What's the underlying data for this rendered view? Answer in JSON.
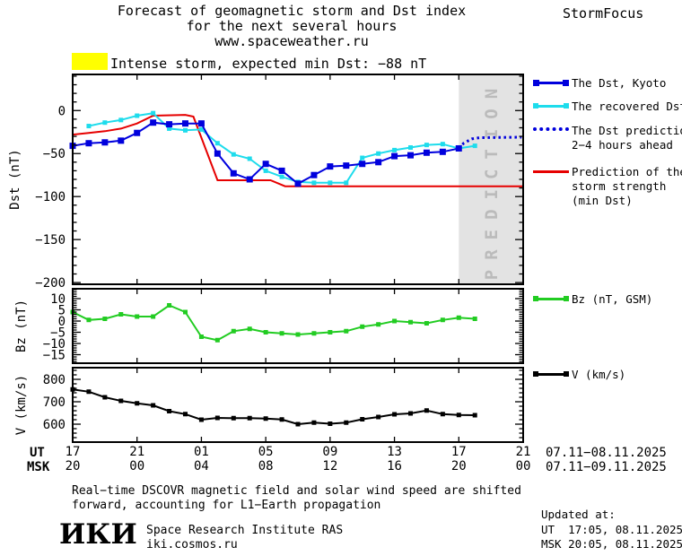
{
  "header": {
    "title_line1": "Forecast of geomagnetic storm and Dst index",
    "title_line2": "for the next several hours",
    "title_line3": "www.spaceweather.ru",
    "brand": "StormFocus"
  },
  "alert": {
    "text": "Intense storm, expected min Dst: −88 nT",
    "swatch_color": "#ffff00"
  },
  "prediction_band": {
    "label": "PREDICTION",
    "start_hour": 24,
    "fill": "#e3e3e3",
    "text_color": "#bbbbbb"
  },
  "legend": {
    "dst": "The Dst, Kyoto",
    "recovered": "The recovered Dst",
    "prediction_line1": "The Dst prediction",
    "prediction_line2": "2−4 hours ahead",
    "strength_line1": "Prediction of the",
    "strength_line2": "storm strength",
    "strength_line3": "(min Dst)",
    "bz": "Bz (nT, GSM)",
    "v": "V (km/s)"
  },
  "xaxis": {
    "ut_label": "UT",
    "msk_label": "MSK",
    "tick_hours": [
      0,
      4,
      8,
      12,
      16,
      20,
      24,
      28
    ],
    "ut_ticks": [
      "17",
      "21",
      "01",
      "05",
      "09",
      "13",
      "17",
      "21"
    ],
    "msk_ticks": [
      "20",
      "00",
      "04",
      "08",
      "12",
      "16",
      "20",
      "00"
    ],
    "ut_range": "07.11−08.11.2025",
    "msk_range": "07.11−09.11.2025"
  },
  "footer": {
    "note_line1": "Real−time DSCOVR magnetic field and solar wind speed are shifted",
    "note_line2": "forward, accounting for L1−Earth propagation",
    "logo": "ИКИ",
    "org_line1": "Space Research Institute RAS",
    "org_line2": "iki.cosmos.ru",
    "updated_label": "Updated at:",
    "updated_ut": "UT  17:05, 08.11.2025",
    "updated_msk": "MSK 20:05, 08.11.2025"
  },
  "chart_data": [
    {
      "type": "line",
      "panel": "dst",
      "ylabel": "Dst (nT)",
      "ylim": [
        -202,
        42
      ],
      "yticks": [
        0,
        -50,
        -100,
        -150,
        -200
      ],
      "ytick_labels": [
        "0",
        "−50",
        "−100",
        "−150",
        "−200"
      ],
      "yminor_step": 10,
      "xlim": [
        0,
        28
      ],
      "x_unit": "hours since 17:00 UT 07.11.2025",
      "series": [
        {
          "key": "storm_strength",
          "name": "Prediction of the storm strength (min Dst)",
          "color": "#e60000",
          "line_width": 2,
          "x": [
            0,
            1,
            2,
            3,
            4,
            5,
            7,
            7.5,
            9,
            12.3,
            13.2,
            28
          ],
          "values": [
            -28,
            -26,
            -24,
            -21,
            -15,
            -6,
            -5,
            -7,
            -81,
            -81,
            -88,
            -88
          ]
        },
        {
          "key": "recovered_dst",
          "name": "The recovered Dst",
          "color": "#1edcec",
          "line_width": 2,
          "marker": "square",
          "marker_size": 5,
          "x": [
            1,
            2,
            3,
            4,
            5,
            6,
            7,
            8,
            9,
            10,
            11,
            12,
            13,
            14,
            15,
            16,
            17,
            18,
            19,
            20,
            21,
            22,
            23,
            24,
            25
          ],
          "values": [
            -18,
            -14,
            -11,
            -6,
            -3,
            -21,
            -23,
            -22,
            -38,
            -51,
            -56,
            -70,
            -77,
            -83,
            -84,
            -84,
            -84,
            -55,
            -50,
            -46,
            -43,
            -40,
            -39,
            -44,
            -41
          ]
        },
        {
          "key": "dst_kyoto",
          "name": "The Dst, Kyoto",
          "color": "#0000dd",
          "line_width": 2,
          "marker": "square",
          "marker_size": 7,
          "x": [
            0,
            1,
            2,
            3,
            4,
            5,
            6,
            7,
            8,
            9,
            10,
            11,
            12,
            13,
            14,
            15,
            16,
            17,
            18,
            19,
            20,
            21,
            22,
            23,
            24
          ],
          "values": [
            -41,
            -38,
            -37,
            -35,
            -26,
            -14,
            -16,
            -15,
            -15,
            -50,
            -73,
            -80,
            -62,
            -70,
            -85,
            -75,
            -65,
            -64,
            -62,
            -60,
            -53,
            -52,
            -49,
            -48,
            -44
          ]
        },
        {
          "key": "dst_prediction",
          "name": "The Dst prediction 2−4 hours ahead",
          "color": "#0000dd",
          "line_width": 3,
          "dash": "dotted",
          "x": [
            24,
            24.3,
            24.8,
            25.3,
            27.9
          ],
          "values": [
            -44,
            -38,
            -33,
            -31.5,
            -31
          ]
        }
      ]
    },
    {
      "type": "line",
      "panel": "bz",
      "ylabel": "Bz (nT)",
      "ylim": [
        -18.8,
        14.4
      ],
      "yticks": [
        10,
        5,
        0,
        -5,
        -10,
        -15
      ],
      "ytick_labels": [
        "10",
        "5",
        "0",
        "−5",
        "−10",
        "−15"
      ],
      "yminor_step": 1,
      "xlim": [
        0,
        28
      ],
      "series": [
        {
          "key": "bz",
          "name": "Bz (nT, GSM)",
          "color": "#22cc22",
          "line_width": 2,
          "marker": "square",
          "marker_size": 5,
          "x": [
            0,
            1,
            2,
            3,
            4,
            5,
            6,
            7,
            8,
            9,
            10,
            11,
            12,
            13,
            14,
            15,
            16,
            17,
            18,
            19,
            20,
            21,
            22,
            23,
            24,
            25
          ],
          "values": [
            4,
            0.5,
            1,
            3,
            2,
            2,
            7,
            4,
            -7,
            -8.5,
            -4.5,
            -3.5,
            -5,
            -5.5,
            -6,
            -5.5,
            -5,
            -4.5,
            -2.5,
            -1.5,
            0,
            -0.5,
            -1,
            0.5,
            1.5,
            1
          ]
        }
      ]
    },
    {
      "type": "line",
      "panel": "v",
      "ylabel": "V (km/s)",
      "ylim": [
        520,
        852
      ],
      "yticks": [
        800,
        700,
        600
      ],
      "ytick_labels": [
        "800",
        "700",
        "600"
      ],
      "yminor_step": 20,
      "xlim": [
        0,
        28
      ],
      "series": [
        {
          "key": "v",
          "name": "V (km/s)",
          "color": "#000000",
          "line_width": 2,
          "marker": "square",
          "marker_size": 5,
          "x": [
            0,
            1,
            2,
            3,
            4,
            5,
            6,
            7,
            8,
            9,
            10,
            11,
            12,
            13,
            14,
            15,
            16,
            17,
            18,
            19,
            20,
            21,
            22,
            23,
            24,
            25
          ],
          "values": [
            755,
            745,
            720,
            704,
            693,
            684,
            658,
            645,
            620,
            628,
            627,
            627,
            625,
            621,
            600,
            607,
            602,
            607,
            622,
            632,
            644,
            648,
            661,
            645,
            641,
            640
          ]
        }
      ]
    }
  ]
}
